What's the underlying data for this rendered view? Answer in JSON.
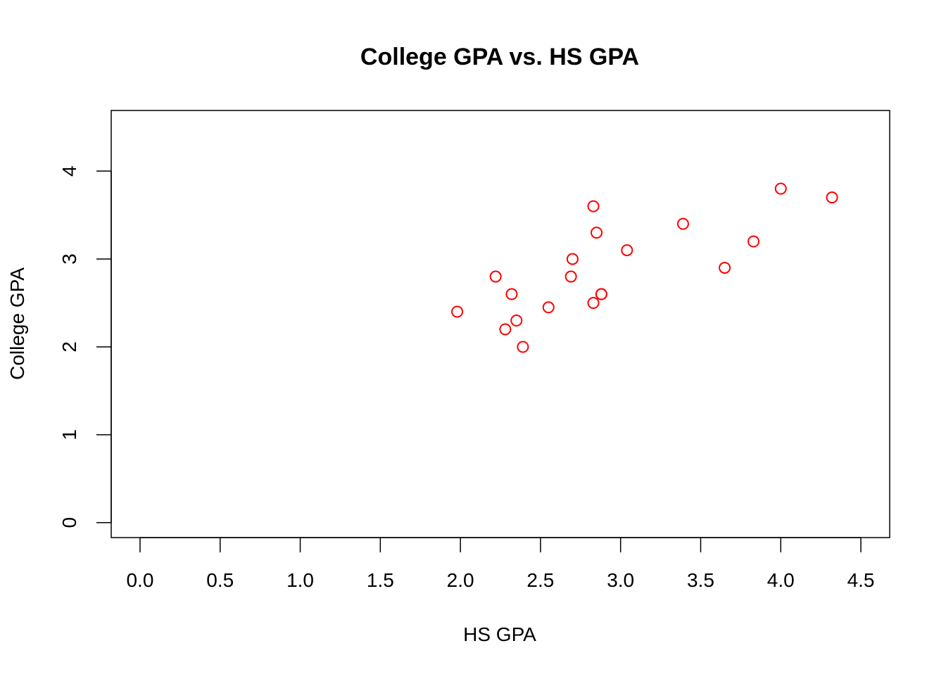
{
  "chart_data": {
    "type": "scatter",
    "title": "College GPA vs. HS GPA",
    "xlabel": "HS GPA",
    "ylabel": "College GPA",
    "xlim": [
      -0.18,
      4.68
    ],
    "ylim": [
      -0.17,
      4.69
    ],
    "x_ticks": [
      0.0,
      0.5,
      1.0,
      1.5,
      2.0,
      2.5,
      3.0,
      3.5,
      4.0,
      4.5
    ],
    "x_tick_labels": [
      "0.0",
      "0.5",
      "1.0",
      "1.5",
      "2.0",
      "2.5",
      "3.0",
      "3.5",
      "4.0",
      "4.5"
    ],
    "y_ticks": [
      0,
      1,
      2,
      3,
      4
    ],
    "y_tick_labels": [
      "0",
      "1",
      "2",
      "3",
      "4"
    ],
    "grid": false,
    "legend": "none",
    "marker": "open-circle",
    "point_color": "#ff0000",
    "series": [
      {
        "x": [
          1.98,
          2.22,
          2.28,
          2.32,
          2.35,
          2.39,
          2.55,
          2.69,
          2.7,
          2.83,
          2.83,
          2.85,
          2.88,
          2.88,
          3.04,
          3.39,
          3.65,
          3.83,
          4.0,
          4.32
        ],
        "y": [
          2.4,
          2.8,
          2.2,
          2.6,
          2.3,
          2.0,
          2.45,
          2.8,
          3.0,
          3.6,
          2.5,
          3.3,
          2.6,
          2.6,
          3.1,
          3.4,
          2.9,
          3.2,
          3.8,
          3.7
        ]
      }
    ]
  }
}
